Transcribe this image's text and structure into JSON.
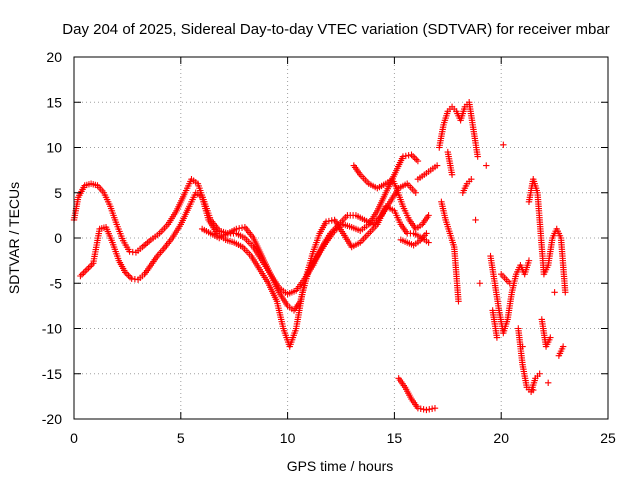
{
  "chart_data": {
    "type": "scatter",
    "title": "Day 204 of 2025, Sidereal Day-to-day VTEC variation (SDTVAR) for receiver mbar",
    "xlabel": "GPS time / hours",
    "ylabel": "SDTVAR / TECUs",
    "xlim": [
      0,
      25
    ],
    "ylim": [
      -20,
      20
    ],
    "xticks": [
      0,
      5,
      10,
      15,
      20,
      25
    ],
    "yticks": [
      -20,
      -15,
      -10,
      -5,
      0,
      5,
      10,
      15,
      20
    ],
    "grid": true,
    "marker": "plus",
    "color": "#ff0000",
    "series": [
      {
        "values": [
          [
            0.0,
            2.0
          ],
          [
            0.2,
            4.5
          ],
          [
            0.5,
            5.8
          ],
          [
            0.8,
            6.0
          ],
          [
            1.1,
            5.8
          ],
          [
            1.4,
            5.0
          ],
          [
            1.7,
            3.5
          ],
          [
            2.0,
            1.5
          ],
          [
            2.3,
            -0.3
          ],
          [
            2.6,
            -1.5
          ],
          [
            2.9,
            -1.6
          ],
          [
            3.2,
            -1.0
          ],
          [
            3.6,
            -0.2
          ],
          [
            4.0,
            0.5
          ],
          [
            4.4,
            1.5
          ],
          [
            4.8,
            3.0
          ],
          [
            5.2,
            5.0
          ],
          [
            5.5,
            6.5
          ],
          [
            5.8,
            6.0
          ],
          [
            6.1,
            4.0
          ],
          [
            6.4,
            2.0
          ],
          [
            6.8,
            0.8
          ],
          [
            7.2,
            0.5
          ],
          [
            7.6,
            0.5
          ],
          [
            8.0,
            0.0
          ],
          [
            8.4,
            -1.0
          ],
          [
            8.8,
            -2.5
          ],
          [
            9.2,
            -4.0
          ],
          [
            9.6,
            -5.5
          ],
          [
            10.0,
            -6.2
          ],
          [
            10.4,
            -5.8
          ],
          [
            10.8,
            -4.5
          ],
          [
            11.2,
            -3.0
          ],
          [
            11.6,
            -1.0
          ],
          [
            12.0,
            0.5
          ],
          [
            12.4,
            1.5
          ],
          [
            12.8,
            2.5
          ],
          [
            13.2,
            2.5
          ],
          [
            13.6,
            2.0
          ],
          [
            14.0,
            1.5
          ],
          [
            14.4,
            2.5
          ],
          [
            14.8,
            4.0
          ],
          [
            15.2,
            5.5
          ],
          [
            15.6,
            6.0
          ],
          [
            16.0,
            5.0
          ]
        ]
      },
      {
        "values": [
          [
            0.3,
            -4.2
          ],
          [
            0.6,
            -3.5
          ],
          [
            0.9,
            -2.8
          ],
          [
            1.2,
            1.0
          ],
          [
            1.5,
            1.2
          ],
          [
            1.8,
            -0.5
          ],
          [
            2.1,
            -2.5
          ],
          [
            2.4,
            -3.8
          ],
          [
            2.7,
            -4.5
          ],
          [
            3.0,
            -4.6
          ],
          [
            3.3,
            -4.0
          ],
          [
            3.6,
            -3.0
          ],
          [
            3.9,
            -2.0
          ],
          [
            4.2,
            -1.2
          ],
          [
            4.6,
            0.0
          ],
          [
            5.0,
            1.5
          ],
          [
            5.4,
            3.5
          ],
          [
            5.7,
            5.0
          ],
          [
            6.0,
            4.5
          ],
          [
            6.3,
            2.0
          ],
          [
            6.7,
            0.5
          ],
          [
            7.1,
            -0.2
          ],
          [
            7.5,
            -0.5
          ],
          [
            7.9,
            -1.0
          ],
          [
            8.3,
            -2.0
          ],
          [
            8.7,
            -3.5
          ],
          [
            9.1,
            -5.0
          ],
          [
            9.5,
            -7.0
          ],
          [
            9.8,
            -10.0
          ],
          [
            10.1,
            -12.0
          ],
          [
            10.4,
            -10.0
          ],
          [
            10.7,
            -6.0
          ],
          [
            11.0,
            -3.5
          ],
          [
            11.4,
            -2.0
          ],
          [
            11.8,
            -0.5
          ],
          [
            12.2,
            0.8
          ],
          [
            12.6,
            1.5
          ],
          [
            13.0,
            1.2
          ],
          [
            13.4,
            0.8
          ],
          [
            13.8,
            1.5
          ],
          [
            14.2,
            3.0
          ],
          [
            14.6,
            5.0
          ],
          [
            15.0,
            7.0
          ],
          [
            15.4,
            9.0
          ],
          [
            15.8,
            9.2
          ],
          [
            16.1,
            8.5
          ]
        ]
      },
      {
        "values": [
          [
            6.0,
            1.0
          ],
          [
            6.4,
            0.5
          ],
          [
            6.8,
            0.0
          ],
          [
            7.2,
            0.5
          ],
          [
            7.6,
            1.0
          ],
          [
            8.0,
            1.2
          ],
          [
            8.4,
            0.0
          ],
          [
            8.8,
            -2.0
          ],
          [
            9.2,
            -4.0
          ],
          [
            9.6,
            -6.0
          ],
          [
            10.0,
            -7.5
          ],
          [
            10.3,
            -8.0
          ],
          [
            10.6,
            -7.0
          ],
          [
            10.9,
            -4.0
          ],
          [
            11.2,
            -1.5
          ],
          [
            11.5,
            0.5
          ],
          [
            11.8,
            1.8
          ],
          [
            12.2,
            2.0
          ],
          [
            12.6,
            0.5
          ],
          [
            13.0,
            -1.0
          ],
          [
            13.4,
            -0.5
          ],
          [
            13.8,
            0.5
          ],
          [
            14.2,
            1.5
          ],
          [
            14.6,
            3.5
          ],
          [
            15.0,
            3.0
          ],
          [
            15.3,
            1.5
          ],
          [
            15.6,
            0.5
          ],
          [
            15.9,
            0.5
          ],
          [
            16.3,
            0.0
          ],
          [
            16.6,
            -0.5
          ]
        ]
      },
      {
        "values": [
          [
            13.1,
            8.0
          ],
          [
            13.4,
            7.0
          ],
          [
            13.8,
            6.0
          ],
          [
            14.2,
            5.5
          ],
          [
            14.6,
            6.0
          ],
          [
            14.9,
            6.5
          ],
          [
            15.1,
            5.5
          ],
          [
            15.4,
            3.5
          ],
          [
            15.7,
            2.0
          ],
          [
            16.0,
            1.0
          ],
          [
            16.3,
            1.5
          ],
          [
            16.6,
            2.5
          ],
          [
            15.3,
            -0.2
          ],
          [
            15.6,
            -0.5
          ],
          [
            15.9,
            -0.8
          ],
          [
            16.2,
            -0.3
          ],
          [
            16.5,
            0.5
          ]
        ]
      },
      {
        "values": [
          [
            15.2,
            -15.5
          ],
          [
            15.5,
            -16.5
          ],
          [
            15.8,
            -17.8
          ],
          [
            16.1,
            -18.8
          ],
          [
            16.5,
            -19.0
          ],
          [
            16.9,
            -18.8
          ],
          [
            16.1,
            6.5
          ],
          [
            16.4,
            7.0
          ],
          [
            16.7,
            7.5
          ],
          [
            17.0,
            8.0
          ]
        ]
      },
      {
        "values": [
          [
            17.1,
            10.0
          ],
          [
            17.3,
            12.5
          ],
          [
            17.5,
            14.0
          ],
          [
            17.7,
            14.5
          ],
          [
            17.9,
            14.0
          ],
          [
            18.1,
            13.0
          ],
          [
            18.3,
            14.5
          ],
          [
            18.5,
            15.0
          ],
          [
            18.7,
            12.0
          ],
          [
            18.9,
            9.0
          ],
          [
            17.2,
            4.0
          ],
          [
            17.4,
            2.0
          ],
          [
            17.6,
            0.5
          ],
          [
            17.8,
            -1.0
          ],
          [
            17.9,
            -4.0
          ],
          [
            18.0,
            -7.0
          ],
          [
            18.2,
            5.0
          ],
          [
            18.4,
            6.0
          ],
          [
            18.6,
            6.5
          ],
          [
            18.8,
            2.0
          ],
          [
            19.0,
            -5.0
          ],
          [
            19.3,
            8.0
          ],
          [
            17.5,
            9.5
          ],
          [
            17.7,
            7.0
          ]
        ]
      },
      {
        "values": [
          [
            19.5,
            -2.0
          ],
          [
            19.7,
            -5.0
          ],
          [
            19.9,
            -8.0
          ],
          [
            20.1,
            -10.5
          ],
          [
            20.3,
            -9.0
          ],
          [
            20.5,
            -6.0
          ],
          [
            20.7,
            -4.0
          ],
          [
            20.9,
            -3.0
          ],
          [
            21.1,
            -4.0
          ],
          [
            21.3,
            -2.5
          ],
          [
            19.6,
            -8.0
          ],
          [
            19.8,
            -11.0
          ],
          [
            20.0,
            -4.0
          ],
          [
            20.4,
            -5.0
          ],
          [
            20.8,
            -10.0
          ],
          [
            21.0,
            -14.0
          ],
          [
            21.2,
            -16.5
          ],
          [
            21.4,
            -17.0
          ],
          [
            21.6,
            -15.5
          ],
          [
            21.8,
            -15.0
          ],
          [
            21.0,
            -12.0
          ],
          [
            20.1,
            10.3
          ]
        ]
      },
      {
        "values": [
          [
            21.3,
            4.0
          ],
          [
            21.5,
            6.5
          ],
          [
            21.7,
            5.0
          ],
          [
            21.8,
            2.0
          ],
          [
            21.9,
            -1.0
          ],
          [
            22.0,
            -4.0
          ],
          [
            22.2,
            -3.0
          ],
          [
            22.4,
            0.0
          ],
          [
            22.6,
            1.0
          ],
          [
            22.8,
            0.0
          ],
          [
            22.9,
            -3.0
          ],
          [
            23.0,
            -6.0
          ],
          [
            21.9,
            -9.0
          ],
          [
            22.1,
            -12.0
          ],
          [
            22.3,
            -11.0
          ],
          [
            22.5,
            -6.0
          ],
          [
            22.7,
            -13.0
          ],
          [
            22.9,
            -12.0
          ],
          [
            22.2,
            -16.0
          ],
          [
            21.5,
            -16.8
          ]
        ]
      }
    ]
  }
}
